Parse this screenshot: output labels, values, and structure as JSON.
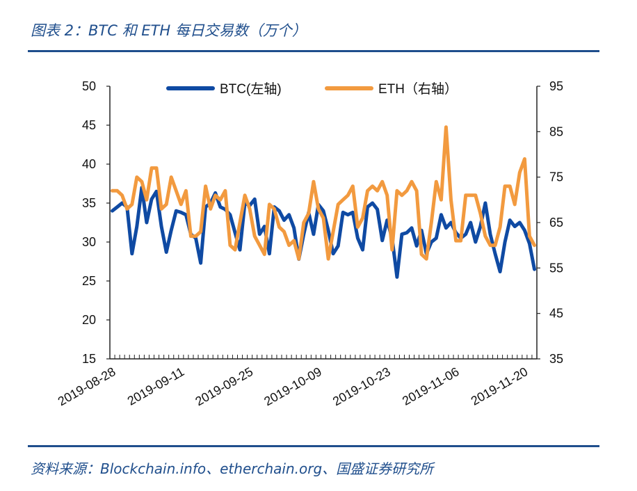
{
  "title": "图表 2：BTC 和 ETH 每日交易数（万个）",
  "source": "资料来源：Blockchain.info、etherchain.org、国盛证券研究所",
  "colors": {
    "accent": "#1f4e8c",
    "btc": "#0f4aa3",
    "eth": "#f29a3f"
  },
  "chart_data": {
    "type": "line",
    "title": "BTC 和 ETH 每日交易数（万个）",
    "x_tick_labels": [
      "2019-08-28",
      "2019-09-11",
      "2019-09-25",
      "2019-10-09",
      "2019-10-23",
      "2019-11-06",
      "2019-11-20"
    ],
    "x_range": [
      "2019-08-28",
      "2019-11-26"
    ],
    "y_left": {
      "ylim": [
        15,
        50
      ],
      "ticks": [
        15,
        20,
        25,
        30,
        35,
        40,
        45,
        50
      ]
    },
    "y_right": {
      "ylim": [
        35,
        95
      ],
      "ticks": [
        35,
        45,
        55,
        65,
        75,
        85,
        95
      ]
    },
    "legend": {
      "placement": "top"
    },
    "grid": false,
    "series": [
      {
        "name": "BTC(左轴)",
        "axis": "left",
        "values": [
          34.0,
          34.5,
          35.0,
          34.5,
          28.5,
          32.0,
          37.0,
          32.5,
          35.5,
          36.5,
          32.0,
          28.7,
          31.5,
          34.0,
          33.8,
          33.5,
          31.0,
          30.5,
          27.3,
          34.5,
          35.0,
          36.3,
          34.5,
          34.2,
          33.5,
          31.2,
          29.0,
          35.0,
          34.7,
          35.5,
          31.0,
          32.0,
          28.5,
          34.5,
          34.0,
          32.8,
          33.5,
          31.8,
          27.8,
          31.0,
          33.8,
          31.0,
          34.8,
          34.0,
          31.5,
          28.5,
          29.5,
          33.8,
          33.5,
          33.8,
          30.5,
          29.0,
          34.5,
          35.0,
          34.2,
          30.2,
          32.8,
          30.5,
          25.5,
          31.0,
          31.2,
          31.8,
          29.5,
          31.5,
          28.5,
          30.0,
          30.5,
          33.5,
          31.8,
          32.5,
          31.2,
          30.5,
          31.0,
          32.5,
          30.0,
          32.0,
          35.0,
          31.0,
          28.5,
          26.2,
          30.0,
          32.8,
          32.0,
          32.5,
          31.5,
          29.8,
          26.5
        ]
      },
      {
        "name": "ETH（右轴）",
        "axis": "right",
        "values": [
          72,
          72,
          71,
          68,
          69,
          75,
          74,
          70,
          77,
          77,
          68,
          69,
          75,
          72,
          69,
          72,
          62,
          62,
          63,
          73,
          68,
          71,
          70,
          72,
          60,
          59,
          65,
          71,
          68,
          62,
          60,
          58,
          69,
          68,
          64,
          63,
          60,
          61,
          57,
          65,
          67,
          74,
          68,
          66,
          57,
          63,
          69,
          70,
          71,
          73,
          64,
          66,
          72,
          73,
          72,
          74,
          71,
          59,
          72,
          71,
          72,
          74,
          72,
          58,
          57,
          65,
          74,
          70,
          86,
          70,
          61,
          61,
          71,
          71,
          71,
          67,
          62,
          60,
          60,
          64,
          73,
          73,
          69,
          76,
          79,
          62,
          60
        ]
      }
    ]
  }
}
